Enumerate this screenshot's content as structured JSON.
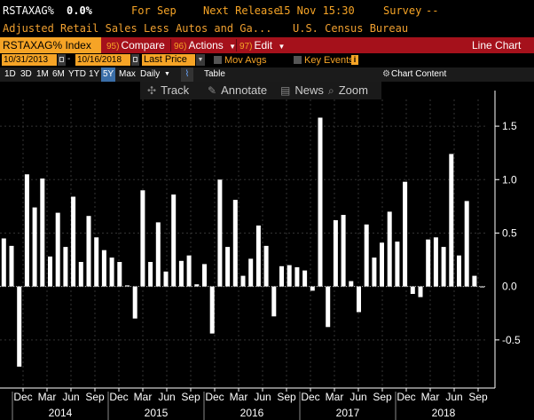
{
  "header": {
    "ticker": "RSTAXAG%",
    "value": "0.0%",
    "for_label": "For",
    "for_value": "Sep",
    "next_release_label": "Next Release",
    "next_release_value": "15 Nov 15:30",
    "survey_label": "Survey",
    "survey_value": "--",
    "description": "Adjusted Retail Sales Less Autos and Ga...",
    "source": "U.S. Census Bureau"
  },
  "menu": {
    "index_label": "RSTAXAG% Index",
    "compare": {
      "num": "95)",
      "label": "Compare"
    },
    "actions": {
      "num": "96)",
      "label": "Actions"
    },
    "edit": {
      "num": "97)",
      "label": "Edit"
    },
    "view_label": "Line Chart"
  },
  "range": {
    "start_date": "10/31/2013",
    "end_date": "10/16/2018",
    "field": "Last Price",
    "mov_avgs": "Mov Avgs",
    "key_events": "Key Events"
  },
  "periods": [
    "1D",
    "3D",
    "1M",
    "6M",
    "YTD",
    "1Y",
    "5Y",
    "Max"
  ],
  "active_period": "5Y",
  "frequency": "Daily",
  "table_label": "Table",
  "chart_content_label": "Chart Content",
  "tools": {
    "track": "Track",
    "annotate": "Annotate",
    "news": "News",
    "zoom": "Zoom"
  },
  "colors": {
    "orange": "#f6a426",
    "menu_red": "#a5111b",
    "bar": "#ffffff",
    "background": "#000000"
  },
  "chart_data": {
    "type": "bar",
    "ylim": [
      -0.95,
      1.75
    ],
    "yticks": [
      1.5,
      1.0,
      0.5,
      -0.5
    ],
    "last_value_label": "0.0",
    "x_month_labels": [
      "Dec",
      "Mar",
      "Jun",
      "Sep",
      "Dec",
      "Mar",
      "Jun",
      "Sep",
      "Dec",
      "Mar",
      "Jun",
      "Sep",
      "Dec",
      "Mar",
      "Jun",
      "Sep",
      "Dec",
      "Mar",
      "Jun",
      "Sep"
    ],
    "x_year_labels": [
      "2014",
      "2015",
      "2016",
      "2017",
      "2018"
    ],
    "values": [
      0.45,
      0.38,
      -0.75,
      1.05,
      0.74,
      1.01,
      0.28,
      0.69,
      0.37,
      0.84,
      0.23,
      0.66,
      0.46,
      0.34,
      0.27,
      0.23,
      0.01,
      -0.3,
      0.9,
      0.23,
      0.6,
      0.14,
      0.86,
      0.24,
      0.29,
      0.02,
      0.21,
      -0.44,
      1.0,
      0.37,
      0.81,
      0.1,
      0.26,
      0.57,
      0.38,
      -0.28,
      0.19,
      0.2,
      0.18,
      0.15,
      -0.04,
      1.58,
      -0.38,
      0.62,
      0.67,
      0.05,
      -0.24,
      0.58,
      0.27,
      0.41,
      0.7,
      0.42,
      0.98,
      -0.07,
      -0.1,
      0.44,
      0.46,
      0.37,
      1.24,
      0.29,
      0.8,
      0.1,
      0.0
    ]
  }
}
